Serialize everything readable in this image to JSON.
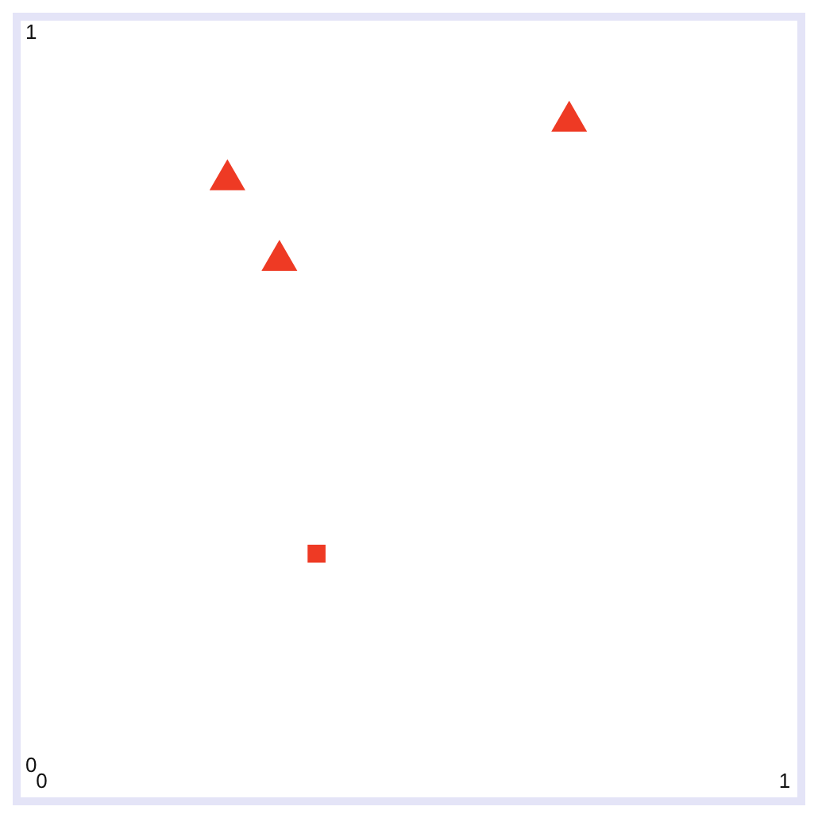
{
  "chart_data": {
    "type": "scatter",
    "xlim": [
      0,
      1
    ],
    "ylim": [
      0,
      1
    ],
    "xticks": [
      0,
      1
    ],
    "yticks": [
      0,
      1
    ],
    "grid": false,
    "series": [
      {
        "color": "#ee3a24",
        "marker": "triangle",
        "x": [
          0.71,
          0.25,
          0.32
        ],
        "values": [
          0.88,
          0.8,
          0.69
        ]
      },
      {
        "color": "#ee3a24",
        "marker": "square",
        "x": [
          0.37
        ],
        "values": [
          0.29
        ]
      }
    ]
  }
}
